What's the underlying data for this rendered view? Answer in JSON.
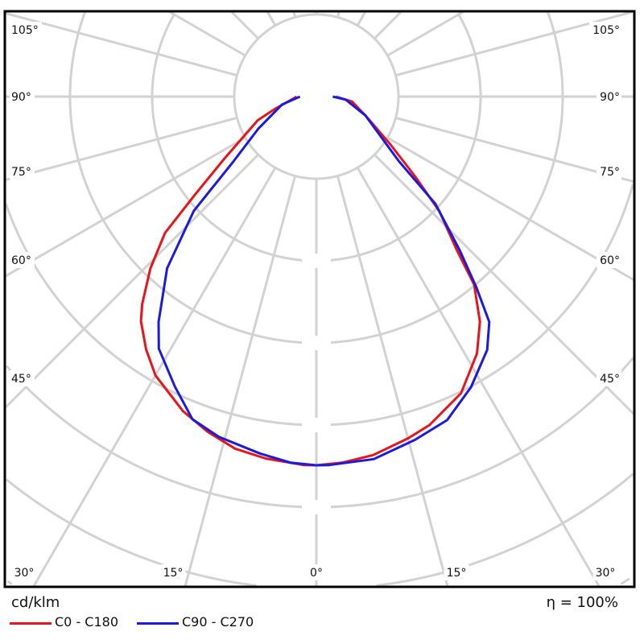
{
  "chart_data": {
    "type": "polar-line",
    "unit_label": "cd/klm",
    "efficiency_label": "η = 100%",
    "angle_zero": "down",
    "angle_step_deg": 15,
    "grid": true,
    "rings": [
      1,
      2,
      3,
      4,
      5,
      6,
      7
    ],
    "side_angle_labels": [
      "105°",
      "90°",
      "75°",
      "60°",
      "45°"
    ],
    "bottom_angle_labels": [
      "30°",
      "15°",
      "0°",
      "15°",
      "30°"
    ],
    "legend_placement": "bottom-left",
    "series": [
      {
        "name": "C0 - C180",
        "color": "#e8141a",
        "points": [
          [
            -90,
            0.24
          ],
          [
            -73,
            0.54
          ],
          [
            -68,
            0.77
          ],
          [
            -56,
            1.35
          ],
          [
            -51,
            1.91
          ],
          [
            -48,
            2.48
          ],
          [
            -44,
            2.91
          ],
          [
            -40,
            3.3
          ],
          [
            -38,
            3.47
          ],
          [
            -34,
            3.71
          ],
          [
            -30,
            3.92
          ],
          [
            -23,
            4.16
          ],
          [
            -18,
            4.29
          ],
          [
            -13,
            4.4
          ],
          [
            -8,
            4.45
          ],
          [
            -2,
            4.49
          ],
          [
            0,
            4.49
          ],
          [
            4,
            4.47
          ],
          [
            9,
            4.42
          ],
          [
            15,
            4.31
          ],
          [
            19,
            4.23
          ],
          [
            26,
            4.02
          ],
          [
            32,
            3.69
          ],
          [
            36,
            3.39
          ],
          [
            40,
            2.99
          ],
          [
            42.5,
            2.53
          ],
          [
            47,
            2.05
          ],
          [
            51,
            1.55
          ],
          [
            57,
            1.08
          ],
          [
            69,
            0.64
          ],
          [
            82,
            0.44
          ],
          [
            90,
            0.24
          ]
        ]
      },
      {
        "name": "C90 - C270",
        "color": "#1a1ae0",
        "points": [
          [
            -90,
            0.2
          ],
          [
            -77,
            0.43
          ],
          [
            -61,
            0.81
          ],
          [
            -52,
            1.28
          ],
          [
            -47,
            2.04
          ],
          [
            -41,
            2.77
          ],
          [
            -35,
            3.35
          ],
          [
            -32,
            3.62
          ],
          [
            -26,
            3.93
          ],
          [
            -21,
            4.21
          ],
          [
            -16,
            4.31
          ],
          [
            -9,
            4.4
          ],
          [
            -4,
            4.47
          ],
          [
            0,
            4.49
          ],
          [
            2,
            4.49
          ],
          [
            9,
            4.47
          ],
          [
            16,
            4.35
          ],
          [
            22,
            4.25
          ],
          [
            28,
            4.01
          ],
          [
            34,
            3.72
          ],
          [
            37.5,
            3.46
          ],
          [
            40,
            3.03
          ],
          [
            43,
            2.56
          ],
          [
            48,
            1.95
          ],
          [
            52,
            1.27
          ],
          [
            69,
            0.64
          ],
          [
            84,
            0.36
          ],
          [
            90,
            0.2
          ]
        ]
      }
    ]
  }
}
